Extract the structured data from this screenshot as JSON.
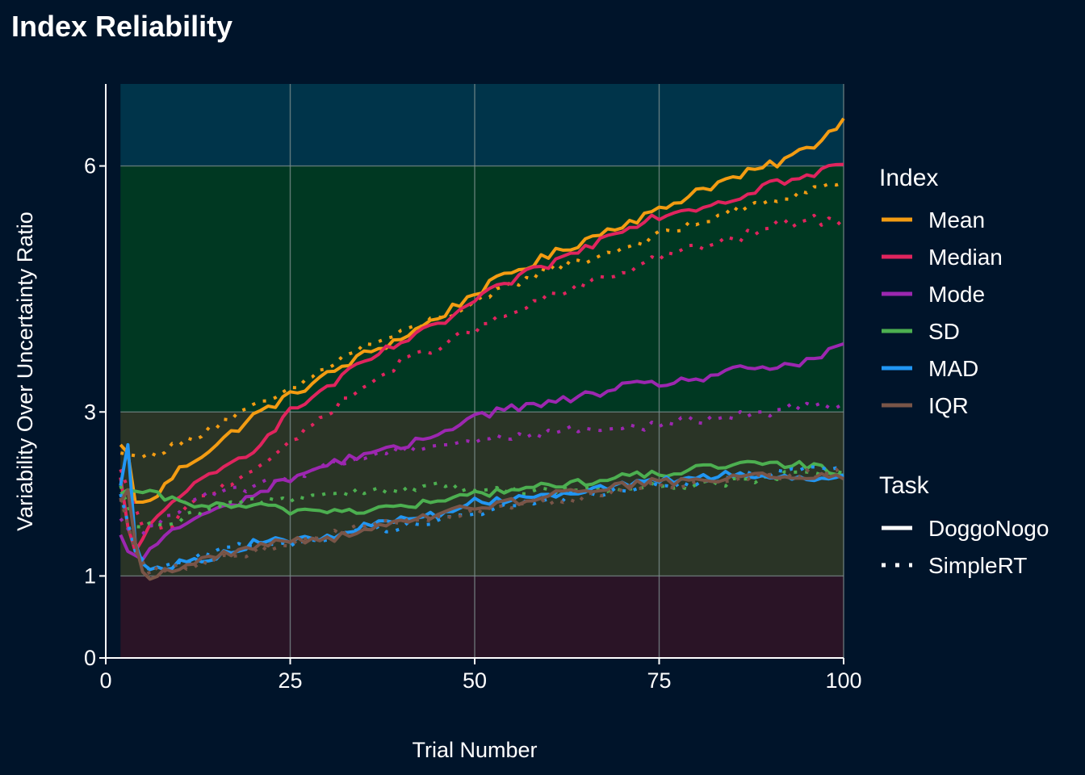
{
  "chart_data": {
    "type": "line",
    "title": "Index Reliability",
    "xlabel": "Trial Number",
    "ylabel": "Variability Over Uncertainty Ratio",
    "xlim": [
      0,
      100
    ],
    "ylim": [
      0,
      7
    ],
    "x_ticks": [
      0,
      25,
      50,
      75,
      100
    ],
    "x_tick_labels": [
      "0",
      "25",
      "50",
      "75",
      "100"
    ],
    "y_ticks": [
      0,
      1,
      3,
      6
    ],
    "y_tick_labels": [
      "0",
      "1",
      "3",
      "6"
    ],
    "grid": true,
    "background_bands": [
      {
        "from": 0,
        "to": 1,
        "color": "#2a1426"
      },
      {
        "from": 1,
        "to": 3,
        "color": "#2a3426"
      },
      {
        "from": 3,
        "to": 6,
        "color": "#003822"
      },
      {
        "from": 6,
        "to": 7,
        "color": "#00344a"
      }
    ],
    "legend": {
      "placement": "right",
      "color_title": "Index",
      "linetype_title": "Task",
      "indices": [
        {
          "name": "Mean",
          "color": "#f39c12"
        },
        {
          "name": "Median",
          "color": "#e0245e"
        },
        {
          "name": "Mode",
          "color": "#9c27b0"
        },
        {
          "name": "SD",
          "color": "#4caf50"
        },
        {
          "name": "MAD",
          "color": "#2196f3"
        },
        {
          "name": "IQR",
          "color": "#795548"
        }
      ],
      "tasks": [
        {
          "name": "DoggoNogo",
          "style": "solid"
        },
        {
          "name": "SimpleRT",
          "style": "dotted"
        }
      ]
    },
    "series_keypoints": [
      {
        "index": "Mean",
        "task": "DoggoNogo",
        "points": [
          [
            2,
            2.6
          ],
          [
            3,
            2.5
          ],
          [
            4,
            1.9
          ],
          [
            6,
            1.9
          ],
          [
            10,
            2.3
          ],
          [
            15,
            2.6
          ],
          [
            20,
            2.95
          ],
          [
            25,
            3.2
          ],
          [
            30,
            3.45
          ],
          [
            35,
            3.7
          ],
          [
            40,
            3.9
          ],
          [
            45,
            4.15
          ],
          [
            50,
            4.45
          ],
          [
            55,
            4.7
          ],
          [
            60,
            4.9
          ],
          [
            65,
            5.1
          ],
          [
            70,
            5.3
          ],
          [
            75,
            5.45
          ],
          [
            80,
            5.7
          ],
          [
            85,
            5.85
          ],
          [
            90,
            6.0
          ],
          [
            95,
            6.2
          ],
          [
            100,
            6.55
          ]
        ]
      },
      {
        "index": "Mean",
        "task": "SimpleRT",
        "points": [
          [
            2,
            2.5
          ],
          [
            5,
            2.45
          ],
          [
            10,
            2.6
          ],
          [
            15,
            2.85
          ],
          [
            20,
            3.05
          ],
          [
            25,
            3.25
          ],
          [
            30,
            3.55
          ],
          [
            35,
            3.8
          ],
          [
            40,
            3.95
          ],
          [
            45,
            4.15
          ],
          [
            50,
            4.3
          ],
          [
            55,
            4.55
          ],
          [
            60,
            4.75
          ],
          [
            65,
            4.85
          ],
          [
            70,
            5.0
          ],
          [
            75,
            5.15
          ],
          [
            80,
            5.3
          ],
          [
            85,
            5.45
          ],
          [
            90,
            5.55
          ],
          [
            95,
            5.7
          ],
          [
            100,
            5.8
          ]
        ]
      },
      {
        "index": "Median",
        "task": "DoggoNogo",
        "points": [
          [
            2,
            2.2
          ],
          [
            3,
            1.6
          ],
          [
            4,
            1.3
          ],
          [
            6,
            1.6
          ],
          [
            10,
            2.0
          ],
          [
            15,
            2.25
          ],
          [
            20,
            2.55
          ],
          [
            25,
            3.0
          ],
          [
            30,
            3.3
          ],
          [
            35,
            3.6
          ],
          [
            40,
            3.85
          ],
          [
            45,
            4.05
          ],
          [
            50,
            4.35
          ],
          [
            55,
            4.6
          ],
          [
            60,
            4.8
          ],
          [
            65,
            5.0
          ],
          [
            70,
            5.25
          ],
          [
            75,
            5.4
          ],
          [
            80,
            5.5
          ],
          [
            85,
            5.6
          ],
          [
            90,
            5.8
          ],
          [
            95,
            5.85
          ],
          [
            100,
            6.05
          ]
        ]
      },
      {
        "index": "Median",
        "task": "SimpleRT",
        "points": [
          [
            2,
            2.3
          ],
          [
            5,
            1.6
          ],
          [
            8,
            1.55
          ],
          [
            12,
            1.9
          ],
          [
            18,
            2.2
          ],
          [
            25,
            2.6
          ],
          [
            30,
            3.0
          ],
          [
            35,
            3.3
          ],
          [
            40,
            3.6
          ],
          [
            45,
            3.8
          ],
          [
            50,
            4.0
          ],
          [
            55,
            4.2
          ],
          [
            60,
            4.4
          ],
          [
            65,
            4.55
          ],
          [
            70,
            4.7
          ],
          [
            75,
            4.9
          ],
          [
            80,
            5.0
          ],
          [
            85,
            5.1
          ],
          [
            90,
            5.25
          ],
          [
            95,
            5.35
          ],
          [
            100,
            5.3
          ]
        ]
      },
      {
        "index": "Mode",
        "task": "DoggoNogo",
        "points": [
          [
            2,
            1.5
          ],
          [
            3,
            1.3
          ],
          [
            5,
            1.2
          ],
          [
            8,
            1.5
          ],
          [
            12,
            1.7
          ],
          [
            18,
            1.9
          ],
          [
            25,
            2.2
          ],
          [
            30,
            2.35
          ],
          [
            35,
            2.5
          ],
          [
            40,
            2.55
          ],
          [
            45,
            2.75
          ],
          [
            50,
            2.95
          ],
          [
            55,
            3.05
          ],
          [
            60,
            3.1
          ],
          [
            65,
            3.2
          ],
          [
            70,
            3.3
          ],
          [
            75,
            3.35
          ],
          [
            80,
            3.4
          ],
          [
            85,
            3.5
          ],
          [
            90,
            3.55
          ],
          [
            95,
            3.6
          ],
          [
            100,
            3.8
          ]
        ]
      },
      {
        "index": "Mode",
        "task": "SimpleRT",
        "points": [
          [
            2,
            1.7
          ],
          [
            4,
            1.45
          ],
          [
            8,
            1.7
          ],
          [
            12,
            1.95
          ],
          [
            18,
            2.05
          ],
          [
            25,
            2.2
          ],
          [
            30,
            2.35
          ],
          [
            35,
            2.45
          ],
          [
            40,
            2.55
          ],
          [
            45,
            2.6
          ],
          [
            50,
            2.65
          ],
          [
            55,
            2.7
          ],
          [
            60,
            2.75
          ],
          [
            65,
            2.8
          ],
          [
            70,
            2.8
          ],
          [
            75,
            2.85
          ],
          [
            80,
            2.9
          ],
          [
            85,
            2.95
          ],
          [
            90,
            3.0
          ],
          [
            95,
            3.1
          ],
          [
            100,
            3.1
          ]
        ]
      },
      {
        "index": "SD",
        "task": "DoggoNogo",
        "points": [
          [
            2,
            2.0
          ],
          [
            3,
            2.05
          ],
          [
            6,
            2.0
          ],
          [
            10,
            1.9
          ],
          [
            15,
            1.85
          ],
          [
            20,
            1.85
          ],
          [
            25,
            1.8
          ],
          [
            30,
            1.8
          ],
          [
            35,
            1.8
          ],
          [
            40,
            1.85
          ],
          [
            45,
            1.9
          ],
          [
            50,
            2.0
          ],
          [
            55,
            2.05
          ],
          [
            60,
            2.1
          ],
          [
            65,
            2.15
          ],
          [
            70,
            2.2
          ],
          [
            75,
            2.25
          ],
          [
            80,
            2.3
          ],
          [
            85,
            2.35
          ],
          [
            90,
            2.35
          ],
          [
            95,
            2.35
          ],
          [
            100,
            2.25
          ]
        ]
      },
      {
        "index": "SD",
        "task": "SimpleRT",
        "points": [
          [
            2,
            2.1
          ],
          [
            4,
            1.6
          ],
          [
            8,
            1.6
          ],
          [
            12,
            1.75
          ],
          [
            18,
            1.9
          ],
          [
            25,
            1.95
          ],
          [
            30,
            2.0
          ],
          [
            35,
            2.05
          ],
          [
            40,
            2.05
          ],
          [
            45,
            2.1
          ],
          [
            50,
            2.05
          ],
          [
            55,
            2.05
          ],
          [
            60,
            2.05
          ],
          [
            65,
            2.05
          ],
          [
            70,
            2.05
          ],
          [
            75,
            2.1
          ],
          [
            80,
            2.1
          ],
          [
            85,
            2.15
          ],
          [
            90,
            2.2
          ],
          [
            95,
            2.25
          ],
          [
            100,
            2.3
          ]
        ]
      },
      {
        "index": "MAD",
        "task": "DoggoNogo",
        "points": [
          [
            2,
            2.1
          ],
          [
            3,
            2.6
          ],
          [
            4,
            1.4
          ],
          [
            5,
            1.15
          ],
          [
            7,
            1.1
          ],
          [
            10,
            1.15
          ],
          [
            15,
            1.25
          ],
          [
            20,
            1.4
          ],
          [
            25,
            1.45
          ],
          [
            30,
            1.45
          ],
          [
            35,
            1.6
          ],
          [
            40,
            1.7
          ],
          [
            45,
            1.75
          ],
          [
            50,
            1.9
          ],
          [
            55,
            1.95
          ],
          [
            60,
            2.0
          ],
          [
            65,
            2.05
          ],
          [
            70,
            2.1
          ],
          [
            75,
            2.15
          ],
          [
            80,
            2.2
          ],
          [
            85,
            2.25
          ],
          [
            90,
            2.2
          ],
          [
            95,
            2.2
          ],
          [
            100,
            2.2
          ]
        ]
      },
      {
        "index": "MAD",
        "task": "SimpleRT",
        "points": [
          [
            2,
            2.0
          ],
          [
            4,
            1.3
          ],
          [
            6,
            1.1
          ],
          [
            10,
            1.15
          ],
          [
            15,
            1.3
          ],
          [
            20,
            1.4
          ],
          [
            25,
            1.4
          ],
          [
            30,
            1.45
          ],
          [
            35,
            1.55
          ],
          [
            40,
            1.6
          ],
          [
            45,
            1.7
          ],
          [
            50,
            1.75
          ],
          [
            55,
            1.85
          ],
          [
            60,
            1.95
          ],
          [
            65,
            2.0
          ],
          [
            70,
            2.05
          ],
          [
            75,
            2.1
          ],
          [
            80,
            2.15
          ],
          [
            85,
            2.2
          ],
          [
            90,
            2.25
          ],
          [
            95,
            2.3
          ],
          [
            100,
            2.3
          ]
        ]
      },
      {
        "index": "IQR",
        "task": "DoggoNogo",
        "points": [
          [
            2,
            1.9
          ],
          [
            3,
            2.05
          ],
          [
            4,
            1.4
          ],
          [
            5,
            1.05
          ],
          [
            6,
            1.0
          ],
          [
            10,
            1.1
          ],
          [
            15,
            1.25
          ],
          [
            20,
            1.35
          ],
          [
            25,
            1.45
          ],
          [
            30,
            1.45
          ],
          [
            35,
            1.55
          ],
          [
            40,
            1.65
          ],
          [
            45,
            1.75
          ],
          [
            50,
            1.85
          ],
          [
            55,
            1.9
          ],
          [
            60,
            2.0
          ],
          [
            65,
            2.05
          ],
          [
            70,
            2.1
          ],
          [
            75,
            2.15
          ],
          [
            80,
            2.15
          ],
          [
            85,
            2.2
          ],
          [
            90,
            2.25
          ],
          [
            95,
            2.2
          ],
          [
            100,
            2.2
          ]
        ]
      },
      {
        "index": "IQR",
        "task": "SimpleRT",
        "points": [
          [
            2,
            1.95
          ],
          [
            4,
            1.3
          ],
          [
            6,
            1.05
          ],
          [
            10,
            1.1
          ],
          [
            15,
            1.2
          ],
          [
            20,
            1.3
          ],
          [
            25,
            1.4
          ],
          [
            30,
            1.5
          ],
          [
            35,
            1.6
          ],
          [
            40,
            1.65
          ],
          [
            45,
            1.7
          ],
          [
            50,
            1.8
          ],
          [
            55,
            1.85
          ],
          [
            60,
            1.9
          ],
          [
            65,
            1.95
          ],
          [
            70,
            2.05
          ],
          [
            75,
            2.1
          ],
          [
            80,
            2.15
          ],
          [
            85,
            2.2
          ],
          [
            90,
            2.2
          ],
          [
            95,
            2.25
          ],
          [
            100,
            2.25
          ]
        ]
      }
    ]
  }
}
